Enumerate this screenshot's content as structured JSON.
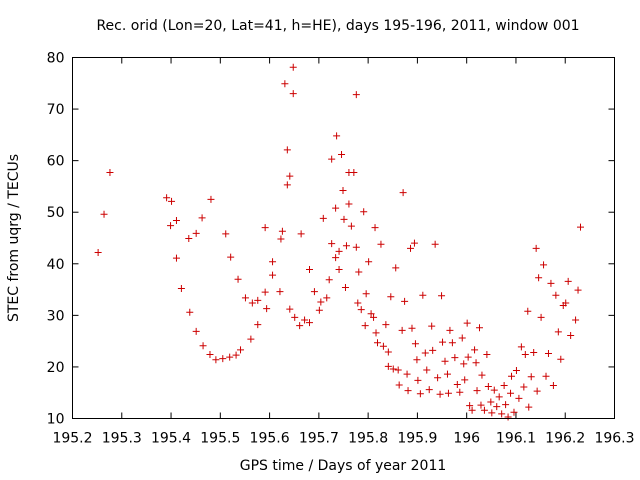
{
  "chart_data": {
    "type": "scatter",
    "title": "Rec. orid (Lon=20, Lat=41, h=HE), days 195-196, 2011, window 001",
    "xlabel": "GPS time / Days of year 2011",
    "ylabel": "STEC from uqrg / TECUs",
    "xlim": [
      195.2,
      196.3
    ],
    "ylim": [
      10,
      80
    ],
    "x_ticks": [
      195.2,
      195.3,
      195.4,
      195.5,
      195.6,
      195.7,
      195.8,
      195.9,
      196.0,
      196.1,
      196.2,
      196.3
    ],
    "x_tick_labels": [
      "195.2",
      "195.3",
      "195.4",
      "195.5",
      "195.6",
      "195.7",
      "195.8",
      "195.9",
      "196",
      "196.1",
      "196.2",
      "196.3"
    ],
    "y_ticks": [
      10,
      20,
      30,
      40,
      50,
      60,
      70,
      80
    ],
    "y_tick_labels": [
      "10",
      "20",
      "30",
      "40",
      "50",
      "60",
      "70",
      "80"
    ],
    "grid": false,
    "marker": "+",
    "color": "#cc0000",
    "points": [
      [
        195.252,
        42.2
      ],
      [
        195.264,
        49.6
      ],
      [
        195.276,
        57.7
      ],
      [
        195.391,
        52.8
      ],
      [
        195.399,
        47.4
      ],
      [
        195.401,
        52.1
      ],
      [
        195.411,
        48.4
      ],
      [
        195.411,
        41.1
      ],
      [
        195.421,
        35.2
      ],
      [
        195.436,
        44.9
      ],
      [
        195.438,
        30.6
      ],
      [
        195.451,
        45.9
      ],
      [
        195.451,
        26.9
      ],
      [
        195.463,
        48.9
      ],
      [
        195.465,
        24.1
      ],
      [
        195.479,
        22.4
      ],
      [
        195.481,
        52.5
      ],
      [
        195.491,
        21.4
      ],
      [
        195.505,
        21.6
      ],
      [
        195.511,
        45.8
      ],
      [
        195.519,
        21.9
      ],
      [
        195.521,
        41.3
      ],
      [
        195.532,
        22.3
      ],
      [
        195.536,
        37.0
      ],
      [
        195.541,
        23.3
      ],
      [
        195.551,
        33.4
      ],
      [
        195.562,
        25.4
      ],
      [
        195.565,
        32.4
      ],
      [
        195.576,
        28.2
      ],
      [
        195.576,
        32.9
      ],
      [
        195.591,
        34.5
      ],
      [
        195.591,
        47.0
      ],
      [
        195.594,
        31.3
      ],
      [
        195.606,
        37.8
      ],
      [
        195.606,
        40.4
      ],
      [
        195.621,
        34.6
      ],
      [
        195.623,
        44.8
      ],
      [
        195.626,
        46.3
      ],
      [
        195.631,
        74.9
      ],
      [
        195.636,
        62.1
      ],
      [
        195.636,
        55.3
      ],
      [
        195.641,
        57.0
      ],
      [
        195.641,
        31.2
      ],
      [
        195.648,
        78.1
      ],
      [
        195.648,
        73.0
      ],
      [
        195.651,
        29.6
      ],
      [
        195.661,
        28.0
      ],
      [
        195.664,
        45.8
      ],
      [
        195.671,
        29.1
      ],
      [
        195.681,
        28.6
      ],
      [
        195.681,
        38.9
      ],
      [
        195.691,
        34.6
      ],
      [
        195.701,
        31.0
      ],
      [
        195.704,
        32.6
      ],
      [
        195.709,
        48.8
      ],
      [
        195.716,
        33.4
      ],
      [
        195.721,
        36.9
      ],
      [
        195.726,
        60.3
      ],
      [
        195.726,
        43.9
      ],
      [
        195.734,
        41.2
      ],
      [
        195.734,
        50.8
      ],
      [
        195.736,
        64.8
      ],
      [
        195.741,
        42.4
      ],
      [
        195.741,
        38.9
      ],
      [
        195.746,
        61.2
      ],
      [
        195.749,
        54.2
      ],
      [
        195.751,
        48.6
      ],
      [
        195.754,
        35.4
      ],
      [
        195.756,
        43.5
      ],
      [
        195.761,
        57.7
      ],
      [
        195.761,
        51.6
      ],
      [
        195.766,
        47.3
      ],
      [
        195.771,
        57.7
      ],
      [
        195.776,
        72.8
      ],
      [
        195.776,
        43.2
      ],
      [
        195.779,
        32.4
      ],
      [
        195.781,
        38.4
      ],
      [
        195.786,
        31.1
      ],
      [
        195.791,
        50.1
      ],
      [
        195.794,
        28.0
      ],
      [
        195.796,
        34.2
      ],
      [
        195.801,
        40.4
      ],
      [
        195.806,
        30.3
      ],
      [
        195.811,
        29.6
      ],
      [
        195.814,
        47.0
      ],
      [
        195.816,
        26.6
      ],
      [
        195.819,
        24.7
      ],
      [
        195.826,
        43.8
      ],
      [
        195.831,
        24.0
      ],
      [
        195.836,
        28.2
      ],
      [
        195.841,
        22.9
      ],
      [
        195.841,
        20.1
      ],
      [
        195.846,
        33.6
      ],
      [
        195.851,
        19.6
      ],
      [
        195.856,
        39.2
      ],
      [
        195.861,
        19.4
      ],
      [
        195.863,
        16.5
      ],
      [
        195.869,
        27.1
      ],
      [
        195.871,
        53.8
      ],
      [
        195.874,
        32.7
      ],
      [
        195.879,
        18.6
      ],
      [
        195.881,
        15.4
      ],
      [
        195.886,
        43.0
      ],
      [
        195.889,
        27.5
      ],
      [
        195.894,
        44.0
      ],
      [
        195.896,
        24.5
      ],
      [
        195.899,
        21.4
      ],
      [
        195.901,
        17.4
      ],
      [
        195.906,
        14.8
      ],
      [
        195.911,
        33.9
      ],
      [
        195.916,
        22.7
      ],
      [
        195.919,
        19.4
      ],
      [
        195.924,
        15.6
      ],
      [
        195.929,
        27.9
      ],
      [
        195.931,
        23.2
      ],
      [
        195.936,
        43.8
      ],
      [
        195.941,
        17.9
      ],
      [
        195.946,
        14.7
      ],
      [
        195.949,
        33.8
      ],
      [
        195.951,
        24.8
      ],
      [
        195.956,
        21.1
      ],
      [
        195.961,
        18.6
      ],
      [
        195.963,
        14.9
      ],
      [
        195.966,
        27.1
      ],
      [
        195.971,
        24.7
      ],
      [
        195.976,
        21.8
      ],
      [
        195.981,
        16.6
      ],
      [
        195.986,
        15.1
      ],
      [
        195.991,
        25.6
      ],
      [
        195.994,
        20.6
      ],
      [
        195.996,
        17.5
      ],
      [
        196.001,
        28.5
      ],
      [
        196.003,
        21.9
      ],
      [
        196.006,
        12.5
      ],
      [
        196.011,
        11.6
      ],
      [
        196.016,
        23.3
      ],
      [
        196.019,
        20.8
      ],
      [
        196.021,
        15.4
      ],
      [
        196.026,
        27.6
      ],
      [
        196.029,
        12.6
      ],
      [
        196.031,
        18.4
      ],
      [
        196.036,
        11.6
      ],
      [
        196.041,
        22.4
      ],
      [
        196.044,
        16.2
      ],
      [
        196.049,
        13.2
      ],
      [
        196.051,
        11.1
      ],
      [
        196.056,
        15.5
      ],
      [
        196.061,
        12.3
      ],
      [
        196.066,
        14.2
      ],
      [
        196.071,
        10.9
      ],
      [
        196.076,
        16.4
      ],
      [
        196.079,
        12.7
      ],
      [
        196.084,
        10.3
      ],
      [
        196.089,
        14.9
      ],
      [
        196.091,
        18.2
      ],
      [
        196.096,
        11.2
      ],
      [
        196.101,
        19.3
      ],
      [
        196.106,
        13.9
      ],
      [
        196.111,
        23.9
      ],
      [
        196.116,
        16.1
      ],
      [
        196.119,
        22.4
      ],
      [
        196.124,
        30.8
      ],
      [
        196.126,
        12.2
      ],
      [
        196.131,
        18.1
      ],
      [
        196.136,
        22.8
      ],
      [
        196.141,
        43.0
      ],
      [
        196.143,
        15.3
      ],
      [
        196.146,
        37.3
      ],
      [
        196.151,
        29.6
      ],
      [
        196.156,
        39.8
      ],
      [
        196.161,
        18.2
      ],
      [
        196.166,
        22.6
      ],
      [
        196.171,
        36.2
      ],
      [
        196.176,
        16.4
      ],
      [
        196.181,
        33.9
      ],
      [
        196.186,
        26.8
      ],
      [
        196.191,
        21.5
      ],
      [
        196.196,
        31.9
      ],
      [
        196.201,
        32.4
      ],
      [
        196.206,
        36.6
      ],
      [
        196.211,
        26.1
      ],
      [
        196.221,
        29.1
      ],
      [
        196.226,
        34.9
      ],
      [
        196.231,
        47.1
      ]
    ]
  }
}
